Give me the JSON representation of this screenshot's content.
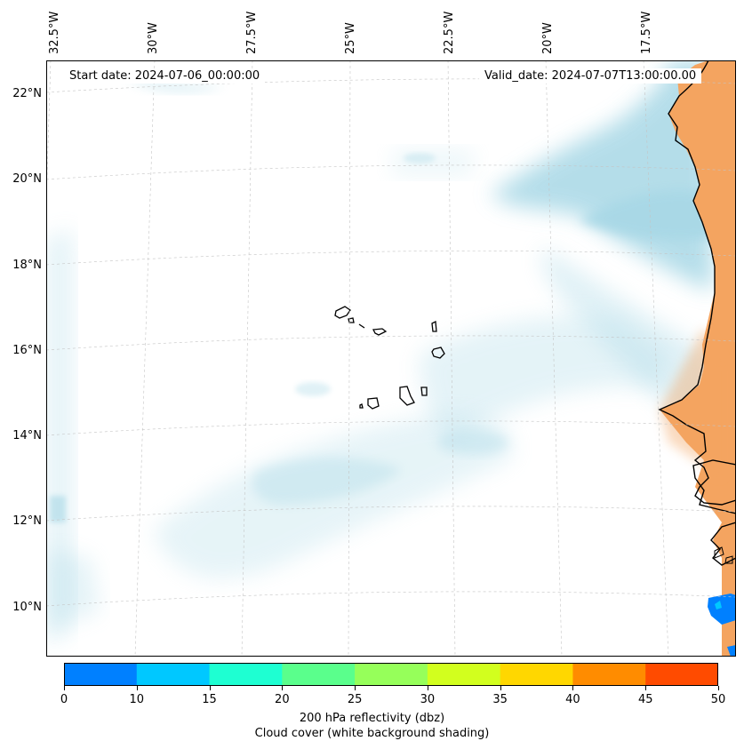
{
  "map": {
    "start_date_label": "Start date: 2024-07-06_00:00:00",
    "valid_date_label": "Valid_date: 2024-07-07T13:00:00.00",
    "longitude_labels": [
      "32.5°W",
      "30°W",
      "27.5°W",
      "25°W",
      "22.5°W",
      "20°W",
      "17.5°W"
    ],
    "latitude_labels": [
      "22°N",
      "20°N",
      "18°N",
      "16°N",
      "14°N",
      "12°N",
      "10°N"
    ]
  },
  "colorbar": {
    "ticks": [
      "0",
      "10",
      "15",
      "20",
      "25",
      "30",
      "35",
      "40",
      "45",
      "50"
    ],
    "colors": [
      "#0080ff",
      "#00c8ff",
      "#1effd2",
      "#5aff8c",
      "#96ff5a",
      "#d2ff1e",
      "#ffd700",
      "#ff8c00",
      "#ff4b00"
    ],
    "label_line1": "200 hPa reflectivity (dbz)",
    "label_line2": "Cloud cover (white background shading)"
  },
  "colors": {
    "cloud": "#a8d8e6",
    "land": "#f4a460",
    "coast": "#000000"
  }
}
